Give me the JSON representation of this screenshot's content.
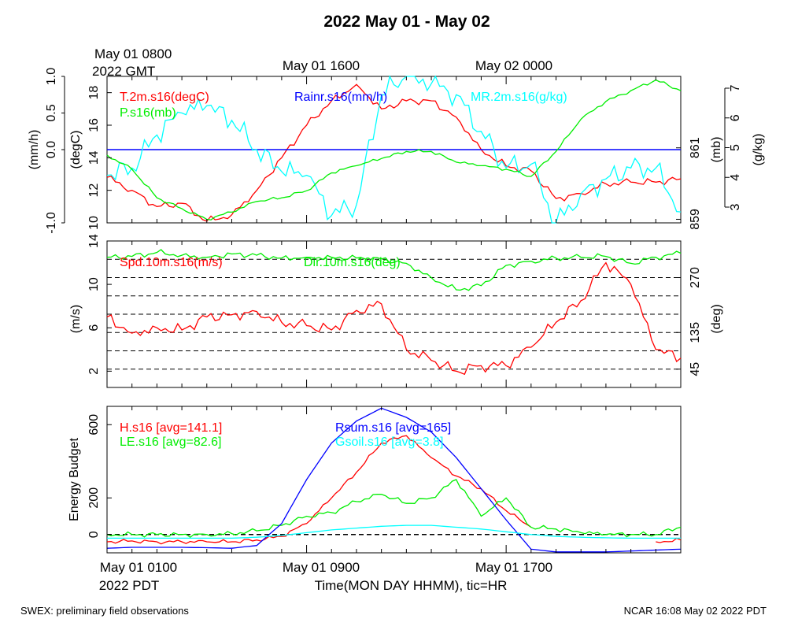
{
  "title": "2022 May 01 - May 02",
  "footer_left": "SWEX: preliminary field observations",
  "footer_right": "NCAR 16:08 May 02 2022 PDT",
  "top_time_labels": [
    "May 01 0800",
    "2022 GMT",
    "May 01 1600",
    "May 02 0000"
  ],
  "bottom_time_labels": [
    "May 01 0100",
    "2022 PDT",
    "May 01 0900",
    "May 01 1700"
  ],
  "xlabel": "Time(MON DAY HHMM), tic=HR",
  "colors": {
    "red": "#ff0000",
    "green": "#00ee00",
    "blue": "#0000ff",
    "cyan": "#00ffff",
    "black": "#000000"
  },
  "chart_data": [
    {
      "type": "line",
      "panel": "top",
      "x_axis": "hours since May 01 0000 PDT",
      "xlim": [
        1,
        24
      ],
      "series": [
        {
          "name": "T.2m.s16(degC)",
          "axis": "degC",
          "color": "#ff0000",
          "x": [
            1,
            2,
            3,
            4,
            5,
            6,
            7,
            8,
            9,
            10,
            11,
            12,
            13,
            14,
            15,
            16,
            17,
            18,
            19,
            20,
            21,
            22,
            23,
            24
          ],
          "values": [
            12.8,
            12.0,
            11.0,
            11.2,
            10.1,
            10.5,
            12.0,
            14.0,
            16.0,
            17.5,
            18.5,
            17.0,
            17.5,
            17.5,
            16.5,
            14.5,
            13.5,
            13.2,
            11.5,
            11.8,
            12.4,
            12.5,
            12.5,
            12.7
          ]
        },
        {
          "name": "Rainr.s16(mm/h)",
          "axis": "mm/h",
          "color": "#0000ff",
          "x": [
            1,
            24
          ],
          "values": [
            0,
            0
          ]
        },
        {
          "name": "MR.2m.s16(g/kg)",
          "axis": "g/kg",
          "color": "#00ffff",
          "x": [
            1,
            2,
            3,
            4,
            5,
            6,
            7,
            8,
            9,
            10,
            11,
            12,
            13,
            14,
            15,
            16,
            17,
            18,
            19,
            20,
            21,
            22,
            23,
            24
          ],
          "values": [
            4.3,
            4.5,
            5.4,
            6.0,
            6.2,
            5.8,
            5.0,
            4.4,
            4.3,
            3.2,
            3.5,
            6.5,
            7.0,
            6.8,
            6.5,
            5.5,
            4.5,
            4.6,
            3.0,
            3.8,
            4.2,
            4.5,
            4.5,
            3.3
          ]
        },
        {
          "name": "P.s16(mb)",
          "axis": "mb",
          "color": "#00ee00",
          "x": [
            1,
            2,
            3,
            4,
            5,
            6,
            7,
            8,
            9,
            10,
            11,
            12,
            13,
            14,
            15,
            16,
            17,
            18,
            19,
            20,
            21,
            22,
            23,
            24
          ],
          "values": [
            860.8,
            860.4,
            859.6,
            859.3,
            859.0,
            859.2,
            859.5,
            859.6,
            859.8,
            860.3,
            860.5,
            860.7,
            860.9,
            860.9,
            860.6,
            860.5,
            860.4,
            860.2,
            860.9,
            861.8,
            862.3,
            862.6,
            862.9,
            862.6
          ]
        }
      ],
      "axes": {
        "mm/h": [
          -1.0,
          1.0
        ],
        "degC": [
          10,
          19
        ],
        "mb": [
          858.9,
          863.0
        ],
        "g/kg": [
          3,
          7
        ]
      },
      "ticks": {
        "mm/h": [
          "-1.0",
          "0.0",
          "0.5",
          "1.0"
        ],
        "degC": [
          "10",
          "12",
          "14",
          "16",
          "18"
        ],
        "mb": [
          "859",
          "861"
        ],
        "g/kg": [
          "3",
          "4",
          "5",
          "6",
          "7"
        ]
      },
      "axis_labels": [
        "(mm/h)",
        "(degC)",
        "(mb)",
        "(g/kg)"
      ]
    },
    {
      "type": "line",
      "panel": "middle",
      "x_axis": "hours since May 01 0000 PDT",
      "xlim": [
        1,
        24
      ],
      "series": [
        {
          "name": "Spd.10m.s16(m/s)",
          "axis": "m/s",
          "color": "#ff0000",
          "x": [
            1,
            2,
            3,
            4,
            5,
            6,
            7,
            8,
            9,
            10,
            11,
            12,
            13,
            14,
            15,
            16,
            17,
            18,
            19,
            20,
            21,
            22,
            23,
            24
          ],
          "values": [
            7.0,
            5.5,
            6.0,
            5.8,
            7.0,
            7.2,
            7.5,
            6.5,
            6.2,
            5.8,
            7.6,
            8.2,
            4.0,
            3.0,
            2.0,
            2.5,
            2.5,
            4.2,
            6.5,
            8.5,
            12.0,
            10.0,
            4.0,
            3.2
          ]
        },
        {
          "name": "Dir.10m.s16(deg)",
          "axis": "deg",
          "color": "#00ee00",
          "x": [
            1,
            2,
            3,
            4,
            5,
            6,
            7,
            8,
            9,
            10,
            11,
            12,
            13,
            14,
            15,
            16,
            17,
            18,
            19,
            20,
            21,
            22,
            23,
            24
          ],
          "values": [
            320,
            322,
            332,
            325,
            320,
            328,
            325,
            318,
            320,
            320,
            318,
            316,
            305,
            270,
            240,
            250,
            300,
            310,
            318,
            320,
            322,
            305,
            320,
            330
          ]
        }
      ],
      "axes": {
        "m/s": [
          0.5,
          14
        ],
        "deg": [
          0,
          360
        ]
      },
      "ticks": {
        "m/s": [
          "2",
          "6",
          "10",
          "14"
        ],
        "deg": [
          "45",
          "135",
          "270"
        ]
      },
      "axis_labels": [
        "(m/s)",
        "(deg)"
      ]
    },
    {
      "type": "line",
      "panel": "bottom",
      "x_axis": "hours since May 01 0000 PDT",
      "xlim": [
        1,
        24
      ],
      "ylabel": "Energy Budget",
      "ylim": [
        -100,
        700
      ],
      "ticks": [
        "0",
        "200",
        "600"
      ],
      "series": [
        {
          "name": "H.s16 [avg=141.1]",
          "color": "#ff0000",
          "x": [
            1,
            2,
            3,
            4,
            5,
            6,
            7,
            8,
            9,
            10,
            11,
            12,
            13,
            14,
            15,
            16,
            17,
            18,
            19,
            20,
            21,
            22,
            23,
            24
          ],
          "values": [
            -40,
            -35,
            -40,
            -40,
            -40,
            -40,
            -30,
            -10,
            60,
            200,
            340,
            500,
            540,
            420,
            320,
            250,
            130,
            40,
            null,
            null,
            null,
            null,
            -40,
            -30
          ]
        },
        {
          "name": "LE.s16 [avg=82.6]",
          "color": "#00ee00",
          "x": [
            1,
            2,
            3,
            4,
            5,
            6,
            7,
            8,
            9,
            10,
            11,
            12,
            13,
            14,
            15,
            16,
            17,
            18,
            19,
            20,
            21,
            22,
            23,
            24
          ],
          "values": [
            0,
            0,
            0,
            0,
            0,
            5,
            20,
            50,
            100,
            120,
            180,
            220,
            170,
            200,
            300,
            100,
            200,
            40,
            30,
            10,
            0,
            0,
            0,
            40
          ]
        },
        {
          "name": "Rsum.s16 [avg=165]",
          "color": "#0000ff",
          "x": [
            1,
            2,
            3,
            4,
            5,
            6,
            7,
            8,
            9,
            10,
            11,
            12,
            13,
            14,
            15,
            16,
            17,
            18,
            19,
            20,
            21,
            22,
            23,
            24
          ],
          "values": [
            -75,
            -70,
            -70,
            -70,
            -72,
            -75,
            -60,
            60,
            300,
            500,
            620,
            690,
            640,
            560,
            420,
            250,
            80,
            -80,
            -95,
            -95,
            -95,
            -90,
            -85,
            -80
          ]
        },
        {
          "name": "Gsoil.s16 [avg=3.8]",
          "color": "#00ffff",
          "x": [
            1,
            2,
            3,
            4,
            5,
            6,
            7,
            8,
            9,
            10,
            11,
            12,
            13,
            14,
            15,
            16,
            17,
            18,
            19,
            20,
            21,
            22,
            23,
            24
          ],
          "values": [
            -20,
            -20,
            -20,
            -20,
            -20,
            -20,
            -15,
            -5,
            10,
            25,
            35,
            45,
            50,
            50,
            40,
            30,
            15,
            0,
            -10,
            -15,
            -18,
            -20,
            -20,
            -20
          ]
        }
      ]
    }
  ]
}
